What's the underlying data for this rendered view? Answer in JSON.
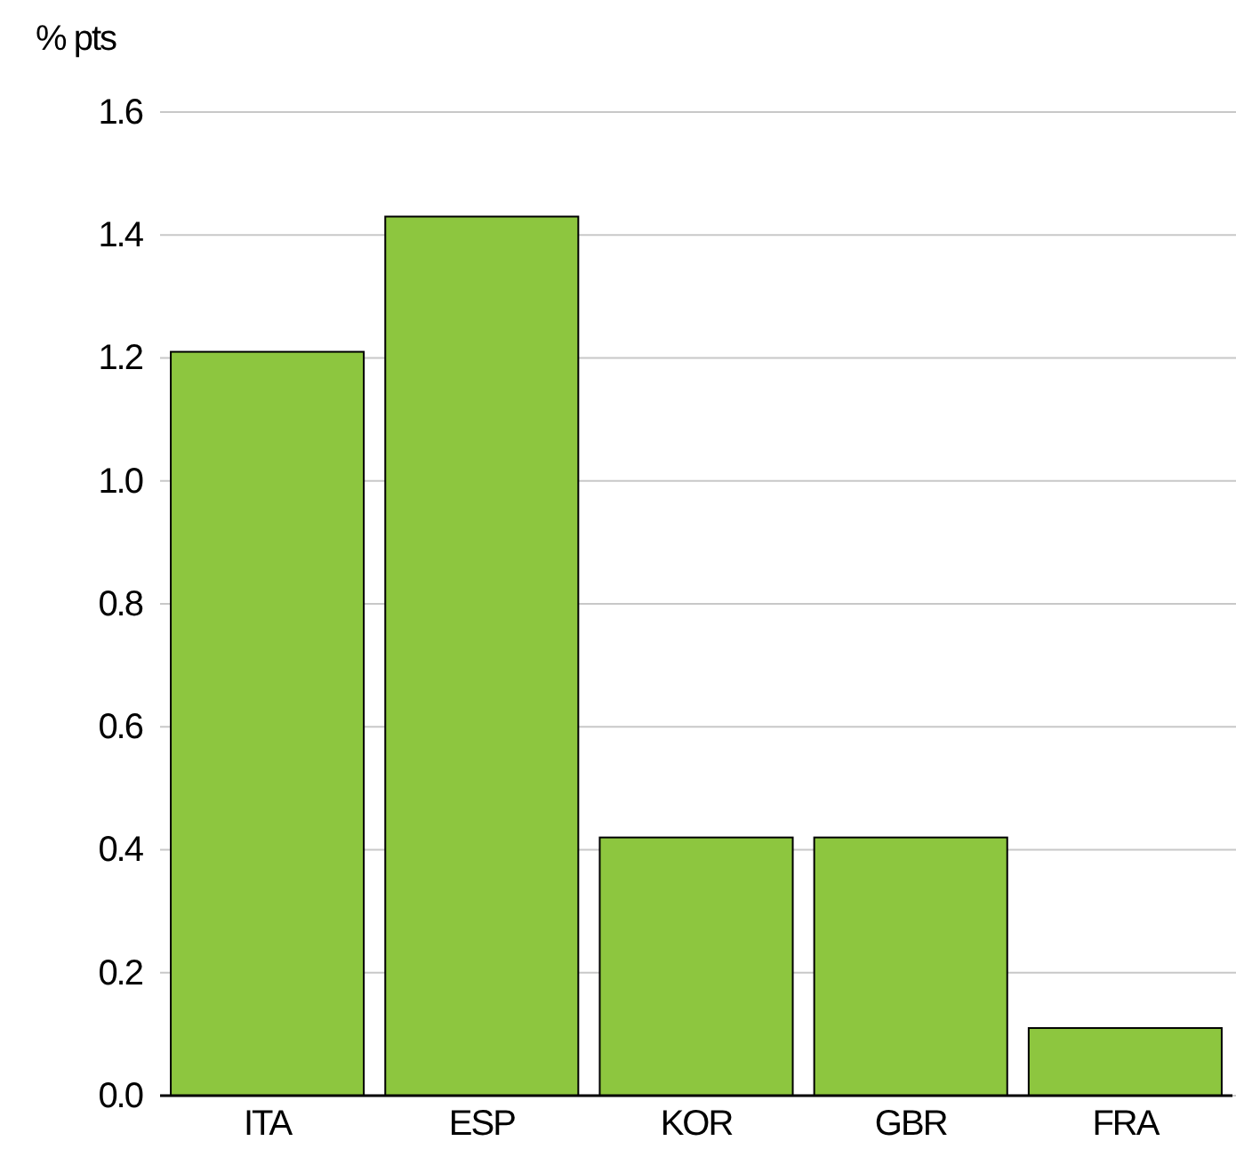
{
  "chart_data": {
    "type": "bar",
    "ylabel": "% pts",
    "categories": [
      "ITA",
      "ESP",
      "KOR",
      "GBR",
      "FRA"
    ],
    "values": [
      1.21,
      1.43,
      0.42,
      0.42,
      0.11
    ],
    "color": "#8dc63f",
    "ylim": [
      0,
      1.6
    ],
    "yticks": [
      {
        "value": 0,
        "label": "0.0"
      },
      {
        "value": 0.2,
        "label": "0.2"
      },
      {
        "value": 0.4,
        "label": "0.4"
      },
      {
        "value": 0.6,
        "label": "0.6"
      },
      {
        "value": 0.8,
        "label": "0.8"
      },
      {
        "value": 1,
        "label": "1.0"
      },
      {
        "value": 1.2,
        "label": "1.2"
      },
      {
        "value": 1.4,
        "label": "1.4"
      },
      {
        "value": 1.6,
        "label": "1.6"
      }
    ],
    "grid": "y"
  }
}
